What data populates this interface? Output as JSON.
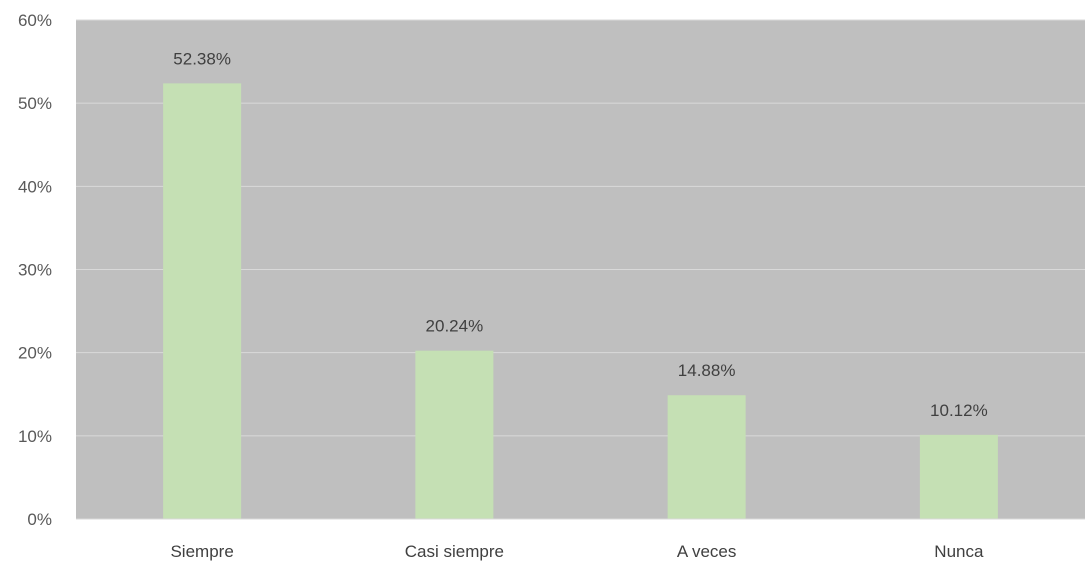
{
  "chart_data": {
    "type": "bar",
    "categories": [
      "Siempre",
      "Casi siempre",
      "A veces",
      "Nunca"
    ],
    "values": [
      52.38,
      20.24,
      14.88,
      10.12
    ],
    "data_labels": [
      "52.38%",
      "20.24%",
      "14.88%",
      "10.12%"
    ],
    "ylim": [
      0,
      60
    ],
    "yticks": [
      0,
      10,
      20,
      30,
      40,
      50,
      60
    ],
    "ytick_labels": [
      "0%",
      "10%",
      "20%",
      "30%",
      "40%",
      "50%",
      "60%"
    ],
    "grid": true,
    "legend": "none",
    "colors": {
      "bar": "#c5e0b4",
      "plot_background": "#bfbfbf",
      "gridline": "#d9d9d9",
      "axis": "#d9d9d9"
    }
  }
}
